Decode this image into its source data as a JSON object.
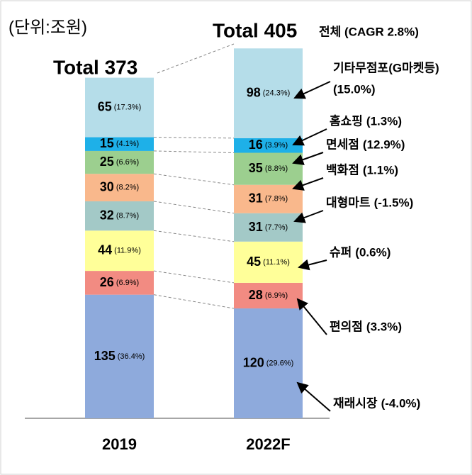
{
  "chart_data": {
    "type": "stacked_bar",
    "unit": "(단위:조원)",
    "overall": "전체 (CAGR 2.8%)",
    "categories": [
      "2019",
      "2022F"
    ],
    "totals": [
      373,
      405
    ],
    "total_labels": [
      "Total 373",
      "Total 405"
    ],
    "ylim": [
      0,
      405
    ],
    "series": [
      {
        "name": "재래시장",
        "growth": "(-4.0%)",
        "color": "#8eaadc",
        "values": [
          135,
          120
        ],
        "share_labels": [
          "(36.4%)",
          "(29.6%)"
        ]
      },
      {
        "name": "편의점",
        "growth": "(3.3%)",
        "color": "#f28b82",
        "values": [
          26,
          28
        ],
        "share_labels": [
          "(6.9%)",
          "(6.9%)"
        ]
      },
      {
        "name": "슈퍼",
        "growth": "(0.6%)",
        "color": "#ffff99",
        "values": [
          44,
          45
        ],
        "share_labels": [
          "(11.9%)",
          "(11.1%)"
        ]
      },
      {
        "name": "대형마트",
        "growth": "(-1.5%)",
        "color": "#a3c9c7",
        "values": [
          32,
          31
        ],
        "share_labels": [
          "(8.7%)",
          "(7.7%)"
        ]
      },
      {
        "name": "백화점",
        "growth": "(1.1%)",
        "color": "#f9b88c",
        "values": [
          30,
          31
        ],
        "share_labels": [
          "(8.2%)",
          "(7.8%)"
        ]
      },
      {
        "name": "면세점",
        "growth": "(12.9%)",
        "color": "#9ccf8f",
        "values": [
          25,
          35
        ],
        "share_labels": [
          "(6.6%)",
          "(8.8%)"
        ]
      },
      {
        "name": "홈쇼핑",
        "growth": "(1.3%)",
        "color": "#1eb0e8",
        "values": [
          15,
          16
        ],
        "share_labels": [
          "(4.1%)",
          "(3.9%)"
        ]
      },
      {
        "name": "기타무점포(G마켓등)",
        "growth": "(15.0%)",
        "color": "#b5dde9",
        "values": [
          65,
          98
        ],
        "share_labels": [
          "(17.3%)",
          "(24.3%)"
        ]
      }
    ]
  }
}
